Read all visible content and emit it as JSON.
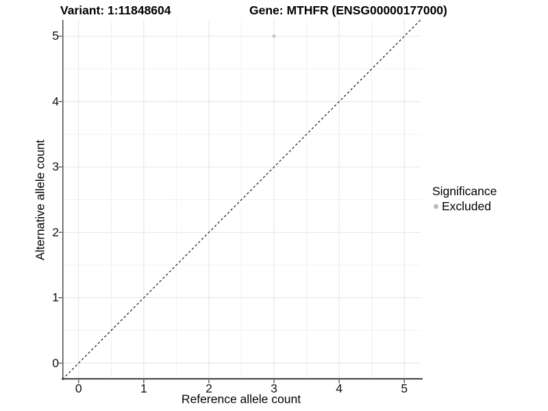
{
  "chart_data": {
    "type": "scatter",
    "titles": {
      "left": "Variant: 1:11848604",
      "right": "Gene: MTHFR (ENSG00000177000)"
    },
    "xlabel": "Reference allele count",
    "ylabel": "Alternative allele count",
    "xlim": [
      -0.25,
      5.25
    ],
    "ylim": [
      -0.25,
      5.25
    ],
    "x_ticks": [
      0,
      1,
      2,
      3,
      4,
      5
    ],
    "y_ticks": [
      0,
      1,
      2,
      3,
      4,
      5
    ],
    "x_minor_ticks": [
      0.5,
      1.5,
      2.5,
      3.5,
      4.5
    ],
    "y_minor_ticks": [
      0.5,
      1.5,
      2.5,
      3.5,
      4.5
    ],
    "grid": "major+minor",
    "points": [
      {
        "x": 3,
        "y": 5,
        "significance": "Excluded"
      }
    ],
    "identity_line": {
      "slope": 1,
      "intercept": 0,
      "style": "dashed",
      "color": "#000000"
    },
    "legend": {
      "title": "Significance",
      "position": "right",
      "items": [
        {
          "label": "Excluded",
          "color": "#bcbcbc"
        }
      ]
    },
    "colors": {
      "point": "#c2c2c2",
      "grid_major": "#e3e3e3",
      "grid_minor": "#f0f0f0",
      "axis_line": "#4a4a4a",
      "tick_mark": "#333333",
      "text": "#000000",
      "background": "#ffffff"
    }
  }
}
